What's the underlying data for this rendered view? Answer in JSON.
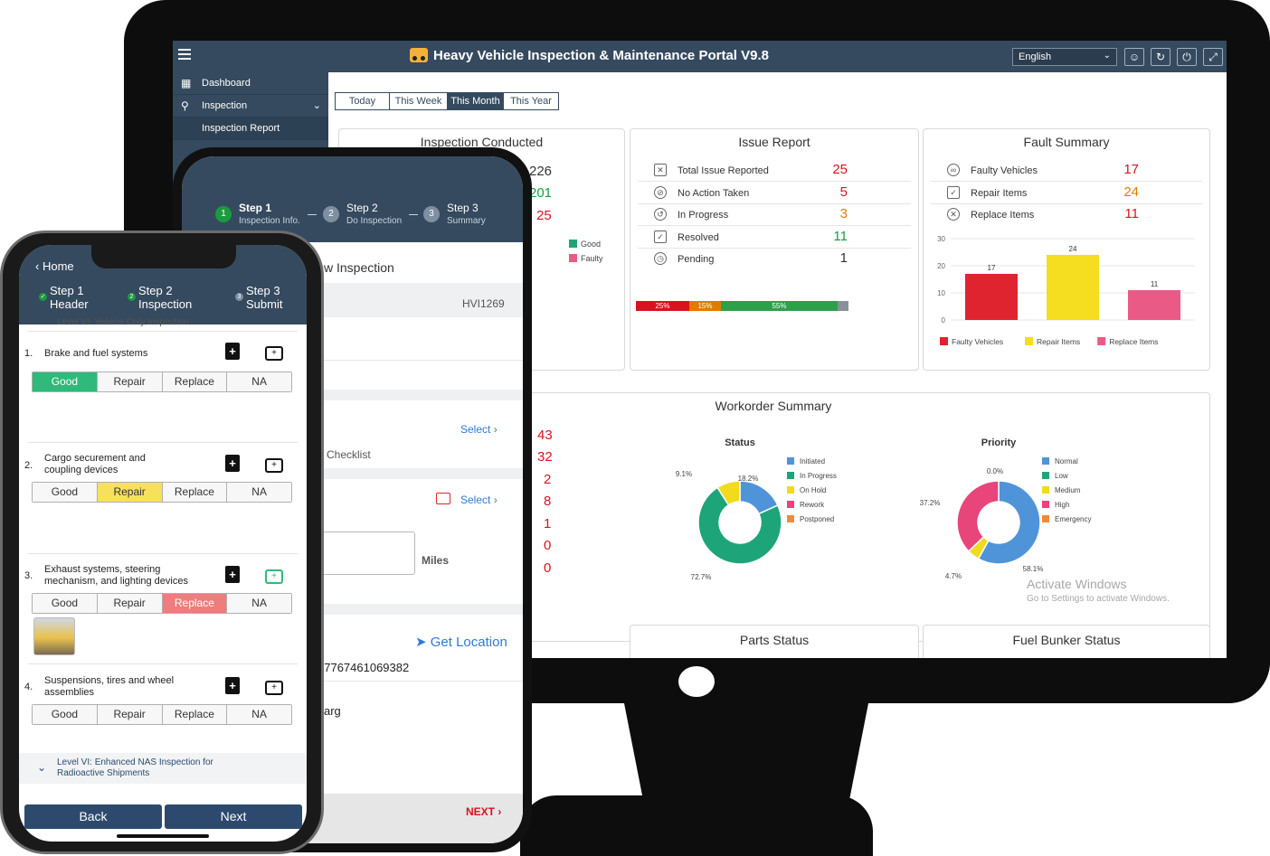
{
  "desktop": {
    "app_title": "Heavy Vehicle Inspection & Maintenance Portal V9.8",
    "language": "English",
    "sidebar": [
      {
        "label": "Dashboard",
        "icon": "grid-icon"
      },
      {
        "label": "Inspection",
        "icon": "inspection-icon",
        "expanded": true
      },
      {
        "label": "Inspection Report",
        "icon": ""
      }
    ],
    "date_tabs": [
      "Today",
      "This Week",
      "This Month",
      "This Year"
    ],
    "active_date_tab": "This Month",
    "inspection_conducted": {
      "title": "Inspection Conducted",
      "values": [
        "226",
        "201",
        "25"
      ],
      "legend": [
        "Good",
        "Faulty"
      ]
    },
    "issue_report": {
      "title": "Issue Report",
      "rows": [
        {
          "label": "Total Issue Reported",
          "value": "25",
          "color": "#d9121e"
        },
        {
          "label": "No Action Taken",
          "value": "5",
          "color": "#d9121e"
        },
        {
          "label": "In Progress",
          "value": "3",
          "color": "#e07b00"
        },
        {
          "label": "Resolved",
          "value": "11",
          "color": "#1a9c3e"
        },
        {
          "label": "Pending",
          "value": "1",
          "color": "#333333"
        }
      ],
      "progress": [
        {
          "label": "25%",
          "fraction": 0.25,
          "color": "#d9121e"
        },
        {
          "label": "15%",
          "fraction": 0.15,
          "color": "#e07b00"
        },
        {
          "label": "55%",
          "fraction": 0.55,
          "color": "#2ea04a"
        },
        {
          "label": "",
          "fraction": 0.05,
          "color": "#8a9099"
        }
      ]
    },
    "fault_summary": {
      "title": "Fault Summary",
      "rows": [
        {
          "label": "Faulty Vehicles",
          "value": "17",
          "color": "#d9121e"
        },
        {
          "label": "Repair Items",
          "value": "24",
          "color": "#e07b00"
        },
        {
          "label": "Replace Items",
          "value": "11",
          "color": "#d9121e"
        }
      ]
    },
    "workorder_summary": {
      "title": "Workorder Summary",
      "status_title": "Status",
      "priority_title": "Priority"
    },
    "bottom_cards": [
      "Parts Status",
      "Fuel Bunker Status"
    ],
    "watermark": {
      "title": "Activate Windows",
      "subtitle": "Go to Settings to activate Windows."
    }
  },
  "chart_data": [
    {
      "type": "bar",
      "categories": [
        "Faulty Vehicles",
        "Repair Items",
        "Replace Items"
      ],
      "values": [
        17,
        24,
        11
      ],
      "colors": [
        "#e0242f",
        "#f5dd1f",
        "#ea5a87"
      ],
      "ylim": [
        0,
        30
      ],
      "yticks": [
        0,
        10,
        20,
        30
      ],
      "legend": [
        "Faulty Vehicles",
        "Repair Items",
        "Replace Items"
      ],
      "legend_position": "bottom"
    },
    {
      "type": "pie",
      "title": "Status",
      "donut": true,
      "labels": [
        "Initiated",
        "In Progress",
        "On Hold",
        "Rework",
        "Postponed"
      ],
      "values": [
        18.2,
        72.7,
        9.1,
        0,
        0
      ],
      "value_labels": [
        "18.2%",
        "72.7%",
        "9.1%",
        "",
        ""
      ],
      "colors": [
        "#4f94d8",
        "#1da579",
        "#f2da1c",
        "#e8457a",
        "#f08a3c"
      ],
      "legend_position": "right"
    },
    {
      "type": "pie",
      "title": "Priority",
      "donut": true,
      "labels": [
        "Normal",
        "Low",
        "Medium",
        "High",
        "Emergency"
      ],
      "values": [
        58.1,
        0,
        4.7,
        37.2,
        0
      ],
      "value_labels": [
        "58.1%",
        "0.0%",
        "4.7%",
        "37.2%",
        ""
      ],
      "colors": [
        "#4f94d8",
        "#1da579",
        "#f2da1c",
        "#e8457a",
        "#f08a3c"
      ],
      "legend_position": "right"
    }
  ],
  "tablet": {
    "steps": [
      {
        "num": "1",
        "title": "Step 1",
        "sub": "Inspection Info."
      },
      {
        "num": "2",
        "title": "Step 2",
        "sub": "Do Inspection"
      },
      {
        "num": "3",
        "title": "Step 3",
        "sub": "Summary"
      }
    ],
    "section_title": "w Inspection",
    "vehicle_id": "HVI1269",
    "select_label_1": "Select",
    "checklist_label": "Checklist",
    "select_label_2": "Select",
    "miles_label": "Miles",
    "get_location": "Get Location",
    "coordinate": "77767461069382",
    "partial_text": "arg",
    "next_label": "NEXT",
    "side_values": [
      "43",
      "32",
      "2",
      "8",
      "1",
      "0",
      "0"
    ]
  },
  "phone": {
    "home": "Home",
    "steps": [
      {
        "num": "✓",
        "line1": "Step 1",
        "line2": "Header"
      },
      {
        "num": "2",
        "line1": "Step 2",
        "line2": "Inspection"
      },
      {
        "num": "3",
        "line1": "Step 3",
        "line2": "Submit"
      }
    ],
    "cut_text": "Level VI: Vehicle Only Inspection",
    "options": [
      "Good",
      "Repair",
      "Replace",
      "NA"
    ],
    "items": [
      {
        "num": "1.",
        "label": "Brake and fuel systems",
        "selected": "Good"
      },
      {
        "num": "2.",
        "label": "Cargo securement and coupling devices",
        "selected": "Repair"
      },
      {
        "num": "3.",
        "label": "Exhaust systems, steering mechanism, and lighting devices",
        "selected": "Replace"
      },
      {
        "num": "4.",
        "label": "Suspensions, tires and wheel assemblies",
        "selected": ""
      }
    ],
    "level_label": "Level VI: Enhanced NAS Inspection for Radioactive Shipments",
    "back_label": "Back",
    "next_label": "Next"
  }
}
